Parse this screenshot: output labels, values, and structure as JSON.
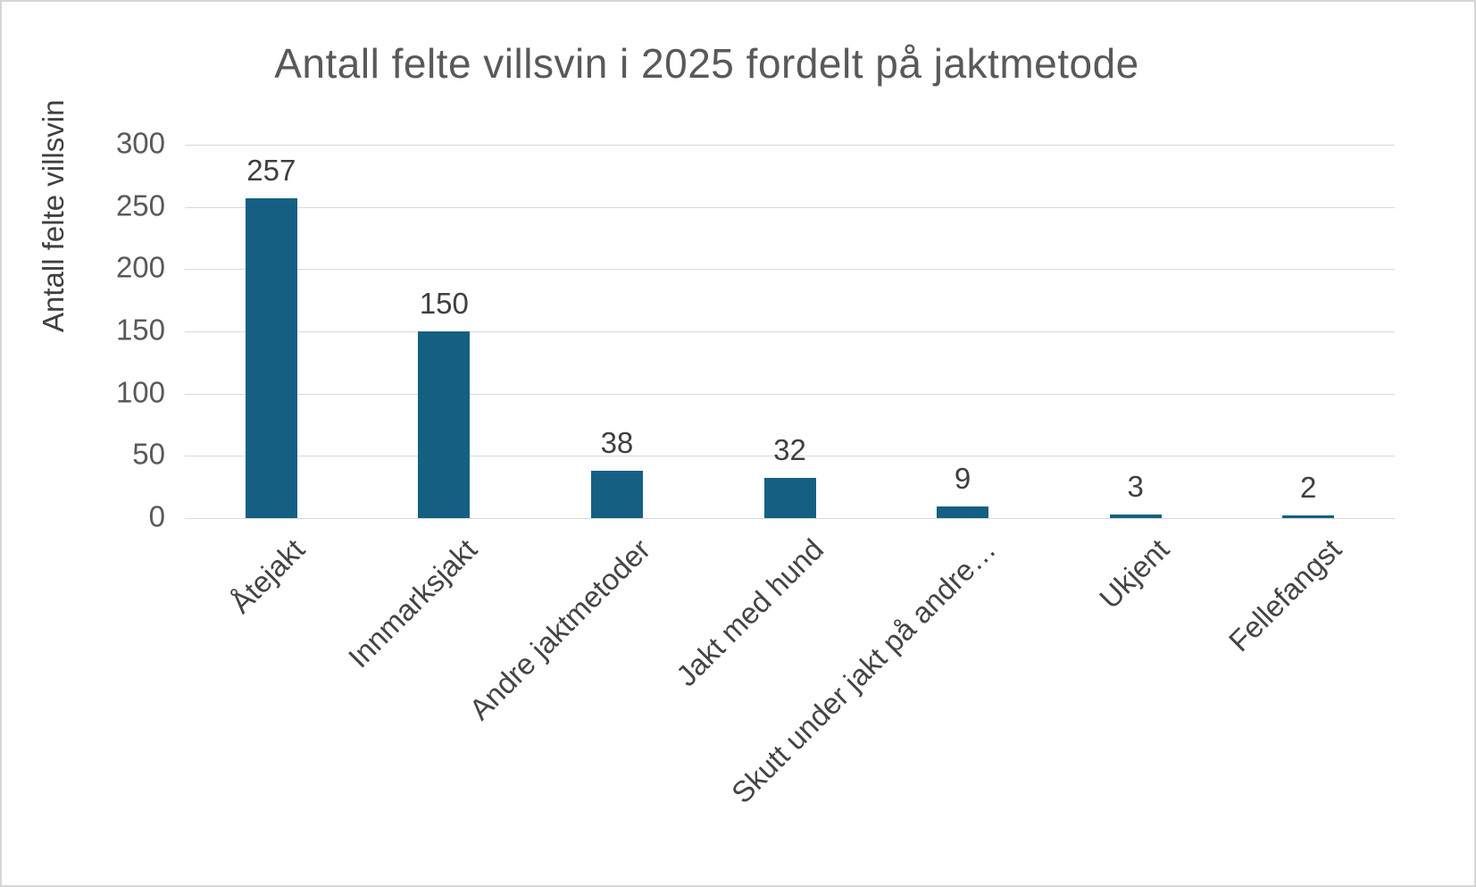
{
  "chart_data": {
    "type": "bar",
    "title": "Antall felte villsvin i 2025 fordelt på jaktmetode",
    "ylabel": "Antall felte villsvin",
    "xlabel": "",
    "categories": [
      "Åtejakt",
      "Innmarksjakt",
      "Andre jaktmetoder",
      "Jakt med hund",
      "Skutt under jakt på andre…",
      "Ukjent",
      "Fellefangst"
    ],
    "values": [
      257,
      150,
      38,
      32,
      9,
      3,
      2
    ],
    "value_labels": [
      "257",
      "150",
      "38",
      "32",
      "9",
      "3",
      "2"
    ],
    "ylim": [
      0,
      300
    ],
    "yticks": [
      0,
      50,
      100,
      150,
      200,
      250,
      300
    ],
    "grid": true,
    "legend": false,
    "bar_color": "#156082",
    "gridline_color": "#d9d9d9",
    "title_color": "#595959",
    "tick_color": "#595959"
  }
}
